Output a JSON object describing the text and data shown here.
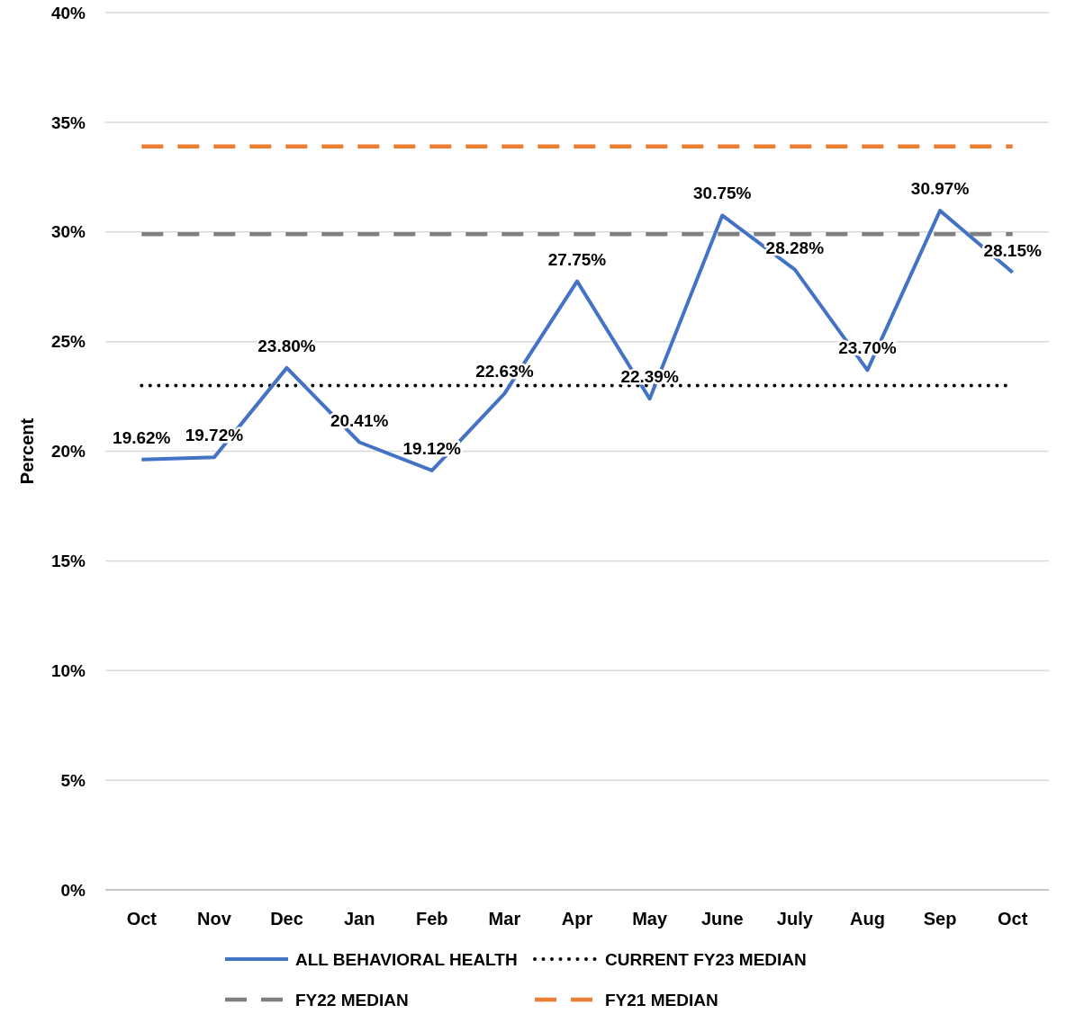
{
  "chart_data": {
    "type": "line",
    "ylabel": "Percent",
    "categories": [
      "Oct",
      "Nov",
      "Dec",
      "Jan",
      "Feb",
      "Mar",
      "Apr",
      "May",
      "June",
      "July",
      "Aug",
      "Sep",
      "Oct"
    ],
    "ylim": [
      0,
      40
    ],
    "yticks": [
      {
        "value": 0,
        "label": "0%"
      },
      {
        "value": 5,
        "label": "5%"
      },
      {
        "value": 10,
        "label": "10%"
      },
      {
        "value": 15,
        "label": "15%"
      },
      {
        "value": 20,
        "label": "20%"
      },
      {
        "value": 25,
        "label": "25%"
      },
      {
        "value": 30,
        "label": "30%"
      },
      {
        "value": 35,
        "label": "35%"
      },
      {
        "value": 40,
        "label": "40%"
      }
    ],
    "grid": "y",
    "legend": "bottom",
    "marker": "none",
    "series": [
      {
        "name": "ALL BEHAVIORAL HEALTH",
        "color": "#4472c4",
        "line_style": "solid",
        "values": [
          19.62,
          19.72,
          23.8,
          20.41,
          19.12,
          22.63,
          27.75,
          22.39,
          30.75,
          28.28,
          23.7,
          30.97,
          28.15
        ],
        "value_labels": [
          "19.62%",
          "19.72%",
          "23.80%",
          "20.41%",
          "19.12%",
          "22.63%",
          "27.75%",
          "22.39%",
          "30.75%",
          "28.28%",
          "23.70%",
          "30.97%",
          "28.15%"
        ]
      },
      {
        "name": "CURRENT FY23 MEDIAN",
        "color": "#000000",
        "line_style": "dotted",
        "values": [
          23.0,
          23.0,
          23.0,
          23.0,
          23.0,
          23.0,
          23.0,
          23.0,
          23.0,
          23.0,
          23.0,
          23.0,
          23.0
        ]
      },
      {
        "name": "FY22 MEDIAN",
        "color": "#7f7f7f",
        "line_style": "dashed",
        "values": [
          29.9,
          29.9,
          29.9,
          29.9,
          29.9,
          29.9,
          29.9,
          29.9,
          29.9,
          29.9,
          29.9,
          29.9,
          29.9
        ]
      },
      {
        "name": "FY21 MEDIAN",
        "color": "#ed7d31",
        "line_style": "dashed",
        "values": [
          33.9,
          33.9,
          33.9,
          33.9,
          33.9,
          33.9,
          33.9,
          33.9,
          33.9,
          33.9,
          33.9,
          33.9,
          33.9
        ]
      }
    ]
  }
}
